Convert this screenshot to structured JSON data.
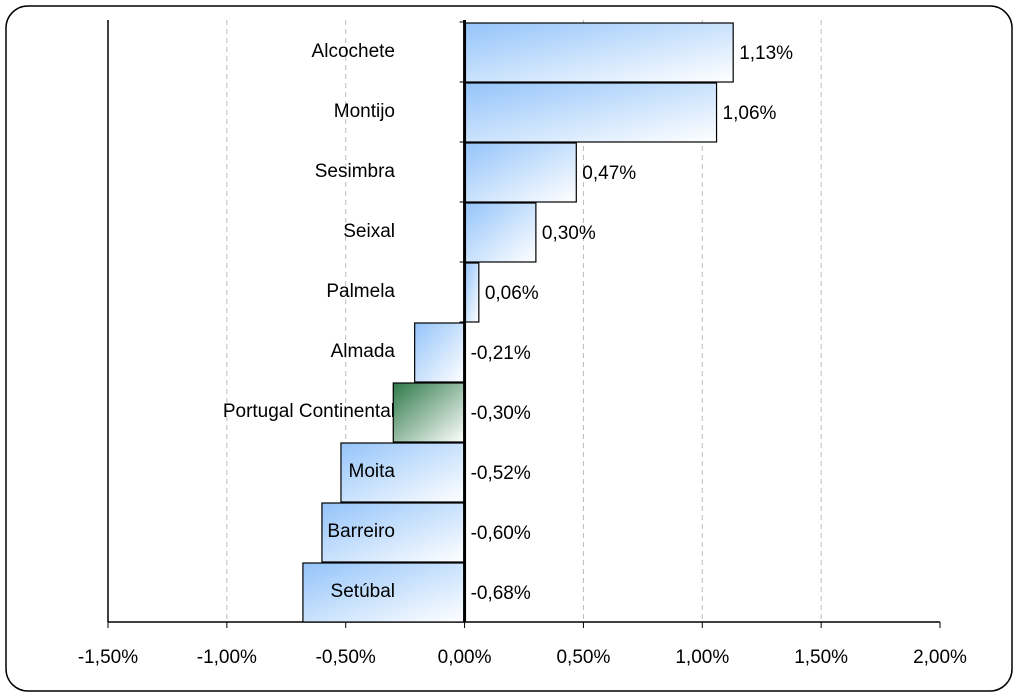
{
  "chart_data": {
    "type": "bar",
    "orientation": "horizontal",
    "categories": [
      "Alcochete",
      "Montijo",
      "Sesimbra",
      "Seixal",
      "Palmela",
      "Almada",
      "Portugal Continental",
      "Moita",
      "Barreiro",
      "Setúbal"
    ],
    "values": [
      1.13,
      1.06,
      0.47,
      0.3,
      0.06,
      -0.21,
      -0.3,
      -0.52,
      -0.6,
      -0.68
    ],
    "value_labels": [
      "1,13%",
      "1,06%",
      "0,47%",
      "0,30%",
      "0,06%",
      "-0,21%",
      "-0,30%",
      "-0,52%",
      "-0,60%",
      "-0,68%"
    ],
    "colors": [
      "#94c4fa",
      "#94c4fa",
      "#94c4fa",
      "#94c4fa",
      "#94c4fa",
      "#94c4fa",
      "#2f7a4a",
      "#94c4fa",
      "#94c4fa",
      "#94c4fa"
    ],
    "label_colors": [
      "#1f3d6b",
      "#1f3d6b",
      "#1f3d6b",
      "#1f3d6b",
      "#1f3d6b",
      "#1f3d6b",
      "#3d9a5c",
      "#1f3d6b",
      "#1f3d6b",
      "#1f3d6b"
    ],
    "xlim": [
      -1.5,
      2.0
    ],
    "xticks": [
      {
        "value": -1.5,
        "label": "-1,50%"
      },
      {
        "value": -1.0,
        "label": "-1,00%"
      },
      {
        "value": -0.5,
        "label": "-0,50%"
      },
      {
        "value": 0,
        "label": "0,00%"
      },
      {
        "value": 0.5,
        "label": "0,50%"
      },
      {
        "value": 1.0,
        "label": "1,00%"
      },
      {
        "value": 1.5,
        "label": "1,50%"
      },
      {
        "value": 2.0,
        "label": "2,00%"
      }
    ],
    "grid": true
  }
}
